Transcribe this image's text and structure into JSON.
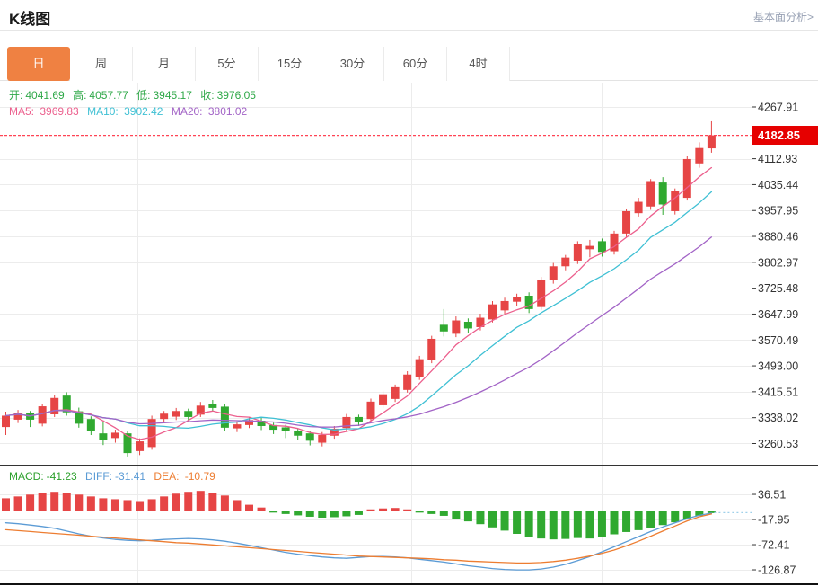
{
  "header": {
    "title": "K线图",
    "link_label": "基本面分析>"
  },
  "tabs": {
    "items": [
      "日",
      "周",
      "月",
      "5分",
      "15分",
      "30分",
      "60分",
      "4时"
    ],
    "active_index": 0
  },
  "info_bar": {
    "items": [
      {
        "label": "开:",
        "value": "4041.69"
      },
      {
        "label": "高:",
        "value": "4057.77"
      },
      {
        "label": "低:",
        "value": "3945.17"
      },
      {
        "label": "收:",
        "value": "3976.05"
      }
    ]
  },
  "ma_bar": {
    "items": [
      {
        "label": "MA5: ",
        "value": "3969.83"
      },
      {
        "label": "MA10: ",
        "value": "3902.42"
      },
      {
        "label": "MA20: ",
        "value": "3801.02"
      }
    ]
  },
  "macd_bar": {
    "items": [
      {
        "label": "MACD:",
        "value": "-41.23"
      },
      {
        "label": "DIFF:",
        "value": "-31.41"
      },
      {
        "label": "DEA: ",
        "value": "-10.79"
      }
    ]
  },
  "price_axis": {
    "labels": [
      "4267.91",
      "4112.93",
      "4035.44",
      "3957.95",
      "3880.46",
      "3802.97",
      "3725.48",
      "3647.99",
      "3570.49",
      "3493.00",
      "3415.51",
      "3338.02",
      "3260.53"
    ],
    "current_price_label": "4182.85"
  },
  "macd_axis": {
    "labels": [
      "36.51",
      "-17.95",
      "-72.41",
      "-126.87"
    ]
  },
  "colors": {
    "up_candle": "#e64545",
    "down_candle": "#30a930",
    "ma5": "#ec5f8d",
    "ma10": "#3fc0d4",
    "ma20": "#a263c6",
    "diff_line": "#5b9bd5",
    "dea_line": "#ed7d31",
    "current_price_line": "#ff4455",
    "current_price_bg": "#e60000",
    "active_tab": "#ef8142",
    "grid": "#ececec",
    "axis_line": "#555555",
    "panel_separator": "#333333",
    "bottom_border": "#111111",
    "tick_text": "#333333",
    "dotted_tail": "#9fd0ea"
  },
  "chart_data": {
    "type": "candlestick",
    "title": "K线图",
    "ohlc_format": "open,close,low,high",
    "current_price": 4182.85,
    "price_axis_ticks": [
      4267.91,
      4112.93,
      4035.44,
      3957.95,
      3880.46,
      3802.97,
      3725.48,
      3647.99,
      3570.49,
      3493.0,
      3415.51,
      3338.02,
      3260.53
    ],
    "candles": [
      [
        3310,
        3344,
        3286,
        3356
      ],
      [
        3332,
        3353,
        3322,
        3361
      ],
      [
        3353,
        3332,
        3310,
        3358
      ],
      [
        3320,
        3372,
        3312,
        3380
      ],
      [
        3348,
        3397,
        3340,
        3406
      ],
      [
        3404,
        3354,
        3344,
        3414
      ],
      [
        3357,
        3320,
        3308,
        3368
      ],
      [
        3334,
        3299,
        3286,
        3342
      ],
      [
        3291,
        3272,
        3256,
        3330
      ],
      [
        3277,
        3293,
        3263,
        3302
      ],
      [
        3291,
        3232,
        3222,
        3298
      ],
      [
        3238,
        3267,
        3226,
        3276
      ],
      [
        3250,
        3334,
        3242,
        3344
      ],
      [
        3334,
        3350,
        3324,
        3358
      ],
      [
        3341,
        3358,
        3331,
        3367
      ],
      [
        3358,
        3340,
        3327,
        3365
      ],
      [
        3347,
        3374,
        3340,
        3385
      ],
      [
        3379,
        3367,
        3357,
        3391
      ],
      [
        3371,
        3308,
        3298,
        3378
      ],
      [
        3306,
        3318,
        3295,
        3327
      ],
      [
        3316,
        3331,
        3307,
        3339
      ],
      [
        3329,
        3313,
        3301,
        3337
      ],
      [
        3316,
        3302,
        3289,
        3323
      ],
      [
        3309,
        3298,
        3277,
        3317
      ],
      [
        3297,
        3284,
        3271,
        3305
      ],
      [
        3291,
        3269,
        3255,
        3297
      ],
      [
        3263,
        3286,
        3252,
        3295
      ],
      [
        3284,
        3305,
        3275,
        3313
      ],
      [
        3307,
        3340,
        3299,
        3349
      ],
      [
        3340,
        3324,
        3313,
        3347
      ],
      [
        3334,
        3386,
        3327,
        3395
      ],
      [
        3375,
        3408,
        3367,
        3417
      ],
      [
        3394,
        3429,
        3385,
        3437
      ],
      [
        3421,
        3467,
        3413,
        3477
      ],
      [
        3459,
        3513,
        3451,
        3523
      ],
      [
        3510,
        3574,
        3501,
        3583
      ],
      [
        3616,
        3596,
        3581,
        3663
      ],
      [
        3589,
        3629,
        3579,
        3641
      ],
      [
        3625,
        3605,
        3591,
        3635
      ],
      [
        3609,
        3637,
        3599,
        3649
      ],
      [
        3632,
        3677,
        3623,
        3687
      ],
      [
        3659,
        3687,
        3649,
        3697
      ],
      [
        3685,
        3698,
        3673,
        3709
      ],
      [
        3703,
        3663,
        3651,
        3713
      ],
      [
        3669,
        3749,
        3661,
        3759
      ],
      [
        3749,
        3791,
        3739,
        3801
      ],
      [
        3791,
        3817,
        3779,
        3825
      ],
      [
        3808,
        3857,
        3798,
        3866
      ],
      [
        3842,
        3852,
        3818,
        3870
      ],
      [
        3866,
        3834,
        3820,
        3874
      ],
      [
        3836,
        3889,
        3826,
        3897
      ],
      [
        3889,
        3956,
        3878,
        3964
      ],
      [
        3950,
        3984,
        3940,
        3996
      ],
      [
        3970,
        4046,
        3960,
        4052
      ],
      [
        4041.69,
        3976.05,
        3945.17,
        4057.77
      ],
      [
        3956,
        4016,
        3946,
        4024
      ],
      [
        3996,
        4112,
        3988,
        4120
      ],
      [
        4099,
        4145,
        4086,
        4162
      ],
      [
        4144,
        4183,
        4131,
        4225
      ]
    ],
    "ma_periods": [
      5,
      10,
      20
    ],
    "macd": {
      "ticks": [
        36.51,
        -17.95,
        -72.41,
        -126.87
      ],
      "histogram": [
        28,
        32,
        36,
        40,
        42,
        40,
        36,
        32,
        28,
        26,
        24,
        22,
        26,
        32,
        38,
        42,
        44,
        40,
        34,
        24,
        14,
        8,
        -3,
        -6,
        -9,
        -12,
        -14,
        -13,
        -11,
        -8,
        4,
        6,
        7,
        4,
        -3,
        -6,
        -10,
        -16,
        -22,
        -28,
        -35,
        -42,
        -49,
        -55,
        -59,
        -61,
        -60,
        -58,
        -59,
        -55,
        -50,
        -45,
        -41,
        -36,
        -30,
        -24,
        -17,
        -10,
        -4
      ],
      "diff": [
        -25,
        -27,
        -30,
        -33,
        -37,
        -43,
        -49,
        -54,
        -58,
        -61,
        -63,
        -64,
        -63,
        -61,
        -60,
        -59,
        -60,
        -62,
        -65,
        -69,
        -74,
        -79,
        -84,
        -89,
        -93,
        -96,
        -99,
        -101,
        -102,
        -100,
        -98,
        -98,
        -99,
        -101,
        -104,
        -107,
        -110,
        -114,
        -118,
        -121,
        -124,
        -126,
        -127,
        -127,
        -125,
        -121,
        -115,
        -107,
        -98,
        -88,
        -77,
        -66,
        -55,
        -44,
        -34,
        -25,
        -16,
        -9,
        -4
      ],
      "dea": [
        -40,
        -42,
        -44,
        -46,
        -48,
        -50,
        -52,
        -54,
        -56,
        -58,
        -60,
        -62,
        -64,
        -66,
        -68,
        -69,
        -71,
        -73,
        -75,
        -77,
        -79,
        -81,
        -83,
        -85,
        -87,
        -89,
        -91,
        -93,
        -95,
        -97,
        -98,
        -99,
        -100,
        -101,
        -102,
        -103,
        -105,
        -106,
        -108,
        -109,
        -110,
        -111,
        -112,
        -112,
        -111,
        -109,
        -106,
        -102,
        -97,
        -91,
        -84,
        -75,
        -65,
        -54,
        -43,
        -32,
        -21,
        -12,
        -6
      ]
    },
    "vertical_gridlines_x": [
      153,
      458,
      670
    ],
    "legend_position": "top-left-overlay",
    "grid": true
  }
}
